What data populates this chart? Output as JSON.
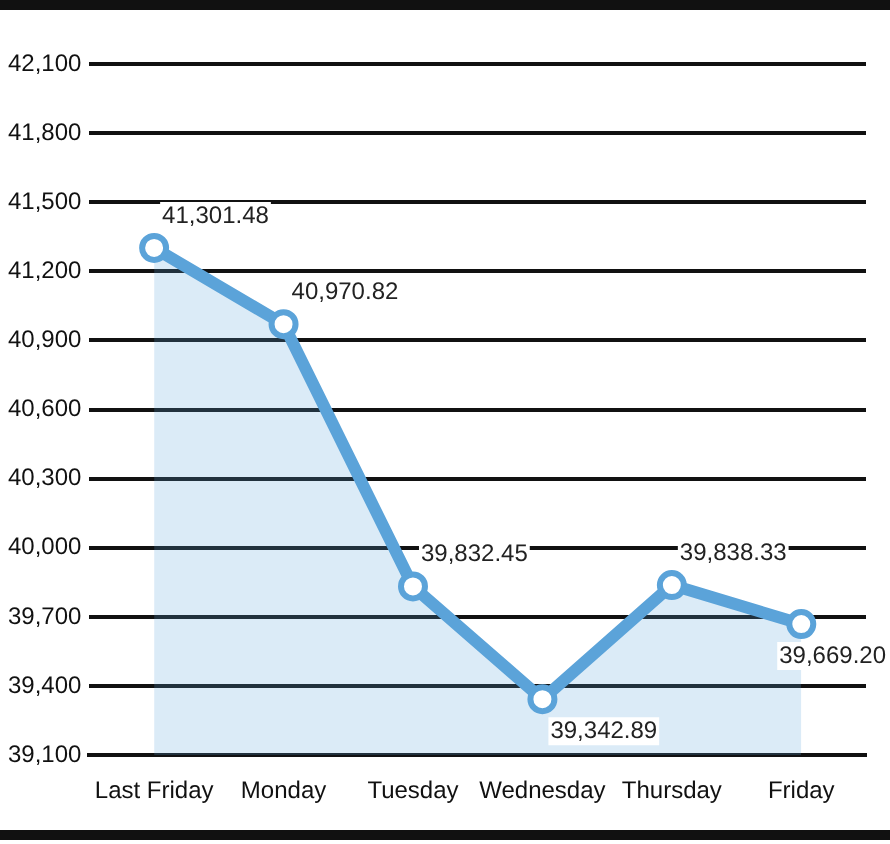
{
  "chart_data": {
    "type": "area",
    "categories": [
      "Last Friday",
      "Monday",
      "Tuesday",
      "Wednesday",
      "Thursday",
      "Friday"
    ],
    "series": [
      {
        "color": "#5ba3d9",
        "values": [
          41301.48,
          40970.82,
          39832.45,
          39342.89,
          39838.33,
          39669.2
        ],
        "value_labels": [
          "41,301.48",
          "40,970.82",
          "39,832.45",
          "39,342.89",
          "39,838.33",
          "39,669.20"
        ]
      }
    ],
    "ylim": [
      39100,
      42100
    ],
    "yticks": [
      {
        "value": 39100,
        "label": "39,100"
      },
      {
        "value": 39400,
        "label": "39,400"
      },
      {
        "value": 39700,
        "label": "39,700"
      },
      {
        "value": 40000,
        "label": "40,000"
      },
      {
        "value": 40300,
        "label": "40,300"
      },
      {
        "value": 40600,
        "label": "40,600"
      },
      {
        "value": 40900,
        "label": "40,900"
      },
      {
        "value": 41200,
        "label": "41,200"
      },
      {
        "value": 41500,
        "label": "41,500"
      },
      {
        "value": 41800,
        "label": "41,800"
      },
      {
        "value": 42100,
        "label": "42,100"
      }
    ],
    "grid": "y",
    "marker": "circle",
    "line_style": "solid",
    "legend": false
  }
}
